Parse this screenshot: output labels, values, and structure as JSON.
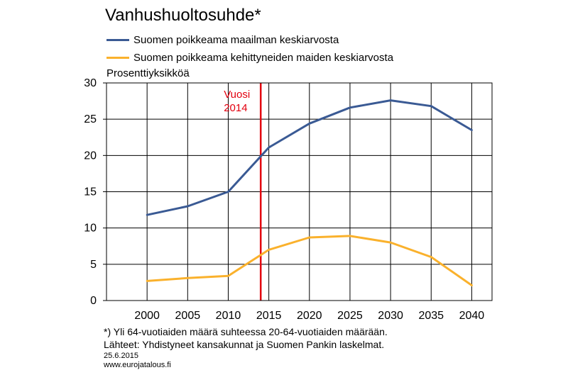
{
  "chart_data": {
    "type": "line",
    "title": "Vanhushuoltosuhde*",
    "ylabel": "Prosenttiyksikköä",
    "xlabel": "",
    "ylim": [
      0,
      30
    ],
    "yticks": [
      0,
      5,
      10,
      15,
      20,
      25,
      30
    ],
    "xlim": [
      1995,
      2042.5
    ],
    "x": [
      2000,
      2005,
      2010,
      2015,
      2020,
      2025,
      2030,
      2035,
      2040
    ],
    "xtick_labels": [
      "2000",
      "2005",
      "2010",
      "2015",
      "2020",
      "2025",
      "2030",
      "2035",
      "2040"
    ],
    "grid": true,
    "legend_position": "top-left",
    "series": [
      {
        "name": "Suomen poikkeama maailman keskiarvosta",
        "color": "#3A5A94",
        "values": [
          11.8,
          13.0,
          15.0,
          21.1,
          24.4,
          26.6,
          27.6,
          26.8,
          23.5
        ]
      },
      {
        "name": "Suomen poikkeama kehittyneiden maiden keskiarvosta",
        "color": "#FAB12C",
        "values": [
          2.7,
          3.1,
          3.4,
          7.0,
          8.7,
          8.9,
          8.0,
          6.0,
          2.1
        ]
      }
    ],
    "annotations": [
      {
        "type": "vline",
        "x": 2014,
        "color": "#E3000F",
        "label_line1": "Vuosi",
        "label_line2": "2014"
      }
    ]
  },
  "footnotes": {
    "note": "*) Yli 64-vuotiaiden määrä suhteessa 20-64-vuotiaiden määrään.",
    "sources": "Lähteet: Yhdistyneet kansakunnat ja Suomen Pankin laskelmat.",
    "date": "25.6.2015",
    "website": "www.eurojatalous.fi"
  }
}
